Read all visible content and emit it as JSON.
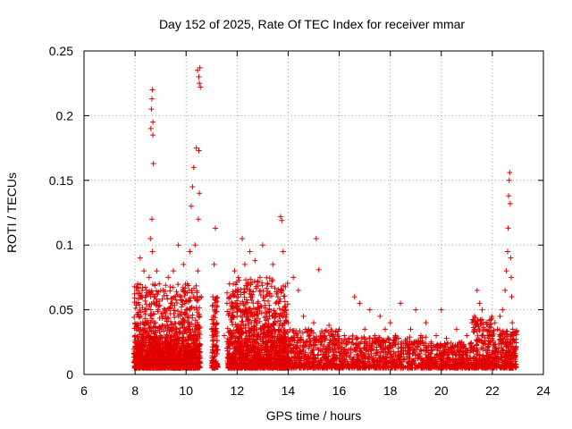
{
  "chart_data": {
    "type": "scatter",
    "title": "Day 152 of 2025, Rate Of TEC Index for receiver mmar",
    "xlabel": "GPS time / hours",
    "ylabel": "ROTI / TECUs",
    "xlim": [
      6,
      24
    ],
    "ylim": [
      0,
      0.25
    ],
    "xticks": [
      6,
      8,
      10,
      12,
      14,
      16,
      18,
      20,
      22,
      24
    ],
    "xtick_labels": [
      "6",
      "8",
      "10",
      "12",
      "14",
      "16",
      "18",
      "20",
      "22",
      "24"
    ],
    "yticks": [
      0,
      0.05,
      0.1,
      0.15,
      0.2,
      0.25
    ],
    "ytick_labels": [
      "0",
      "0.05",
      "0.1",
      "0.15",
      "0.2",
      "0.25"
    ],
    "grid": true,
    "marker": "+",
    "color": "#e00000",
    "series": [
      {
        "name": "ROTI",
        "x": [
          8.0,
          8.05,
          8.1,
          8.15,
          8.2,
          8.25,
          8.3,
          8.35,
          8.4,
          8.45,
          8.5,
          8.55,
          8.6,
          8.62,
          8.64,
          8.66,
          8.68,
          8.7,
          8.72,
          8.7,
          8.68,
          8.66,
          8.75,
          8.8,
          8.85,
          8.9,
          8.95,
          9.0,
          9.1,
          9.2,
          9.3,
          9.4,
          9.5,
          9.6,
          9.7,
          9.8,
          9.9,
          10.0,
          10.05,
          10.1,
          10.15,
          10.2,
          10.25,
          10.3,
          10.35,
          10.4,
          10.45,
          10.5,
          10.52,
          10.54,
          10.56,
          10.5,
          10.52,
          10.48,
          10.46,
          10.6,
          11.0,
          11.05,
          11.1,
          11.15,
          11.2,
          11.5,
          11.6,
          11.7,
          11.8,
          11.9,
          12.0,
          12.1,
          12.2,
          12.3,
          12.4,
          12.5,
          12.6,
          12.7,
          12.8,
          12.9,
          13.0,
          13.2,
          13.4,
          13.6,
          13.7,
          13.75,
          13.8,
          13.9,
          14.0,
          14.2,
          14.4,
          14.6,
          14.8,
          15.0,
          15.1,
          15.2,
          15.4,
          15.6,
          15.8,
          16.0,
          16.2,
          16.4,
          16.6,
          16.8,
          17.0,
          17.2,
          17.4,
          17.6,
          17.8,
          18.0,
          18.2,
          18.4,
          18.6,
          18.8,
          19.0,
          19.2,
          19.4,
          19.6,
          19.8,
          20.0,
          20.2,
          20.4,
          20.6,
          20.8,
          21.0,
          21.2,
          21.3,
          21.4,
          21.5,
          21.6,
          21.7,
          21.8,
          21.9,
          22.0,
          22.1,
          22.2,
          22.3,
          22.4,
          22.5,
          22.55,
          22.6,
          22.62,
          22.64,
          22.66,
          22.68,
          22.7,
          22.72,
          22.74,
          22.76,
          22.78,
          22.8,
          22.82,
          22.85,
          22.9
        ],
        "y": [
          0.03,
          0.055,
          0.07,
          0.045,
          0.09,
          0.06,
          0.035,
          0.08,
          0.05,
          0.065,
          0.04,
          0.075,
          0.105,
          0.19,
          0.205,
          0.213,
          0.22,
          0.195,
          0.163,
          0.185,
          0.095,
          0.12,
          0.06,
          0.04,
          0.08,
          0.05,
          0.07,
          0.03,
          0.065,
          0.045,
          0.075,
          0.055,
          0.08,
          0.035,
          0.1,
          0.06,
          0.085,
          0.05,
          0.07,
          0.045,
          0.095,
          0.13,
          0.145,
          0.16,
          0.1,
          0.175,
          0.235,
          0.23,
          0.225,
          0.237,
          0.222,
          0.173,
          0.14,
          0.12,
          0.08,
          0.06,
          0.035,
          0.06,
          0.085,
          0.113,
          0.04,
          0.03,
          0.055,
          0.07,
          0.045,
          0.08,
          0.065,
          0.05,
          0.105,
          0.085,
          0.07,
          0.095,
          0.06,
          0.088,
          0.055,
          0.075,
          0.1,
          0.07,
          0.085,
          0.06,
          0.122,
          0.119,
          0.095,
          0.05,
          0.04,
          0.075,
          0.065,
          0.045,
          0.035,
          0.04,
          0.105,
          0.081,
          0.03,
          0.038,
          0.028,
          0.035,
          0.03,
          0.025,
          0.06,
          0.055,
          0.035,
          0.05,
          0.03,
          0.045,
          0.035,
          0.04,
          0.03,
          0.055,
          0.025,
          0.035,
          0.05,
          0.03,
          0.04,
          0.025,
          0.03,
          0.05,
          0.028,
          0.02,
          0.035,
          0.025,
          0.03,
          0.04,
          0.045,
          0.065,
          0.055,
          0.05,
          0.035,
          0.03,
          0.025,
          0.03,
          0.04,
          0.035,
          0.045,
          0.05,
          0.065,
          0.08,
          0.095,
          0.113,
          0.138,
          0.15,
          0.156,
          0.132,
          0.09,
          0.075,
          0.06,
          0.04,
          0.035,
          0.03,
          0.025,
          0.02
        ]
      }
    ],
    "bands": [
      {
        "x0": 7.95,
        "x1": 10.55,
        "lo": 0.005,
        "hi": 0.07,
        "n": 900
      },
      {
        "x0": 7.95,
        "x1": 10.55,
        "lo": 0.005,
        "hi": 0.03,
        "n": 700
      },
      {
        "x0": 11.0,
        "x1": 11.25,
        "lo": 0.005,
        "hi": 0.06,
        "n": 120
      },
      {
        "x0": 11.6,
        "x1": 14.0,
        "lo": 0.005,
        "hi": 0.075,
        "n": 800
      },
      {
        "x0": 11.6,
        "x1": 14.0,
        "lo": 0.005,
        "hi": 0.035,
        "n": 500
      },
      {
        "x0": 14.0,
        "x1": 16.0,
        "lo": 0.005,
        "hi": 0.035,
        "n": 450
      },
      {
        "x0": 16.0,
        "x1": 19.5,
        "lo": 0.005,
        "hi": 0.03,
        "n": 650
      },
      {
        "x0": 19.5,
        "x1": 21.2,
        "lo": 0.005,
        "hi": 0.025,
        "n": 350
      },
      {
        "x0": 21.2,
        "x1": 22.0,
        "lo": 0.005,
        "hi": 0.045,
        "n": 220
      },
      {
        "x0": 22.0,
        "x1": 22.95,
        "lo": 0.005,
        "hi": 0.035,
        "n": 250
      }
    ]
  }
}
